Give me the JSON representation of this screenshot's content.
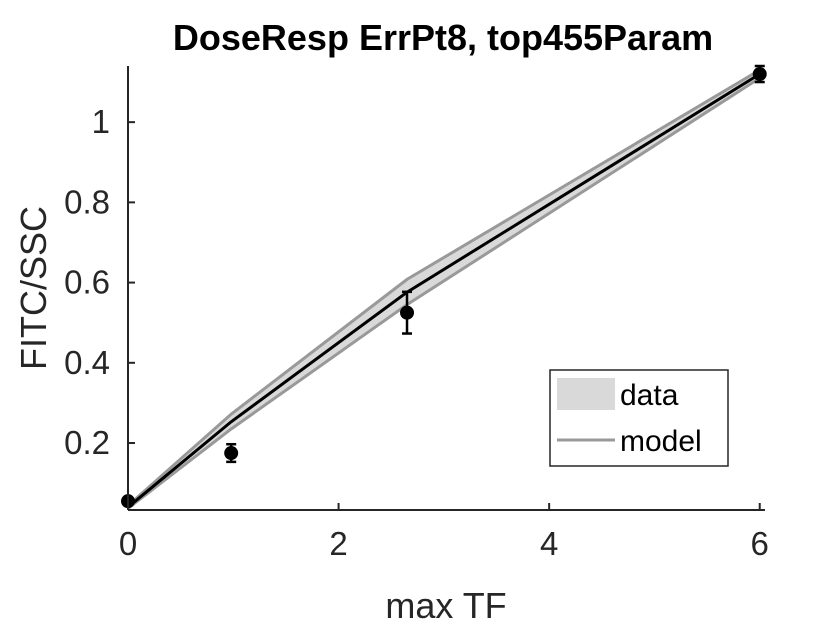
{
  "chart_data": {
    "type": "line",
    "title": "DoseResp ErrPt8, top455Param",
    "xlabel": "max TF",
    "ylabel": "FITC/SSC",
    "xlim": [
      0,
      6.05
    ],
    "ylim": [
      0.033,
      1.14
    ],
    "xticks": [
      0,
      2,
      4,
      6
    ],
    "yticks": [
      0.2,
      0.4,
      0.6,
      0.8,
      1
    ],
    "xtick_labels": [
      "0",
      "2",
      "4",
      "6"
    ],
    "ytick_labels": [
      "0.2",
      "0.4",
      "0.6",
      "0.8",
      "1"
    ],
    "grid": false,
    "legend": {
      "placement": "bottom-right",
      "entries": [
        {
          "label": "data",
          "color": "#d9d9d9"
        },
        {
          "label": "model",
          "color": "#999999"
        }
      ]
    },
    "band": {
      "x": [
        0,
        0.98,
        2.65,
        6
      ],
      "lower": [
        0.037,
        0.235,
        0.545,
        1.11
      ],
      "upper": [
        0.044,
        0.272,
        0.608,
        1.13
      ],
      "fill_color": "#d9d9d9",
      "edge_color": "#999999"
    },
    "model_line": {
      "x": [
        0,
        0.98,
        2.65,
        6
      ],
      "y": [
        0.04,
        0.253,
        0.576,
        1.12
      ],
      "color": "#000000"
    },
    "points": {
      "x": [
        0,
        0.98,
        2.65,
        6
      ],
      "y": [
        0.055,
        0.175,
        0.525,
        1.12
      ],
      "err": [
        0.005,
        0.022,
        0.052,
        0.02
      ],
      "color": "#000000"
    }
  }
}
